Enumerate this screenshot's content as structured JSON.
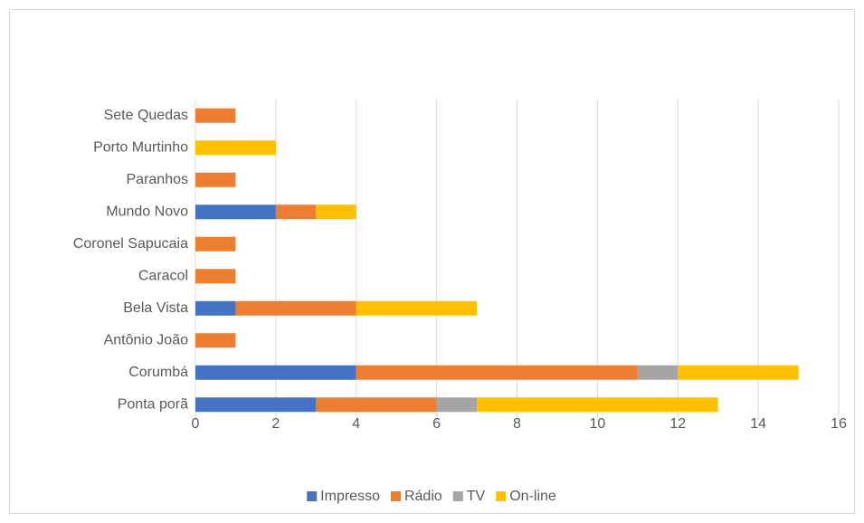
{
  "chart_data": {
    "type": "bar",
    "orientation": "horizontal",
    "stacked": true,
    "categories": [
      "Ponta porã",
      "Corumbá",
      "Antônio João",
      "Bela Vista",
      "Caracol",
      "Coronel Sapucaia",
      "Mundo Novo",
      "Paranhos",
      "Porto Murtinho",
      "Sete Quedas"
    ],
    "series": [
      {
        "name": "Impresso",
        "color": "#4472c4",
        "values": [
          3,
          4,
          0,
          1,
          0,
          0,
          2,
          0,
          0,
          0
        ]
      },
      {
        "name": "Rádio",
        "color": "#ed7d31",
        "values": [
          3,
          7,
          1,
          3,
          1,
          1,
          1,
          1,
          0,
          1
        ]
      },
      {
        "name": "TV",
        "color": "#a5a5a5",
        "values": [
          1,
          1,
          0,
          0,
          0,
          0,
          0,
          0,
          0,
          0
        ]
      },
      {
        "name": "On-line",
        "color": "#ffc000",
        "values": [
          6,
          3,
          0,
          3,
          0,
          0,
          1,
          0,
          2,
          0
        ]
      }
    ],
    "xlim": [
      0,
      16
    ],
    "xticks": [
      0,
      2,
      4,
      6,
      8,
      10,
      12,
      14,
      16
    ],
    "grid": true,
    "legend": "bottom"
  }
}
